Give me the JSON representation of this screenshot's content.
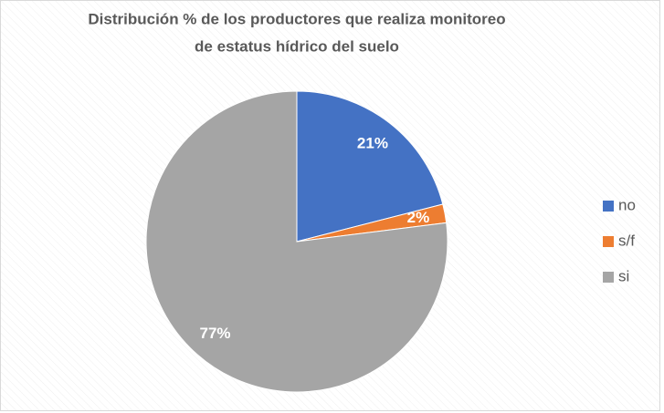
{
  "chart_data": {
    "type": "pie",
    "title": [
      "Distribución % de los productores que realiza monitoreo",
      "de estatus hídrico del suelo"
    ],
    "categories": [
      "no",
      "s/f",
      "si"
    ],
    "values": [
      21,
      2,
      77
    ],
    "value_labels": [
      "21%",
      "2%",
      "77%"
    ],
    "colors": [
      "#4472c4",
      "#ed7d31",
      "#a5a5a5"
    ],
    "legend": "right"
  }
}
